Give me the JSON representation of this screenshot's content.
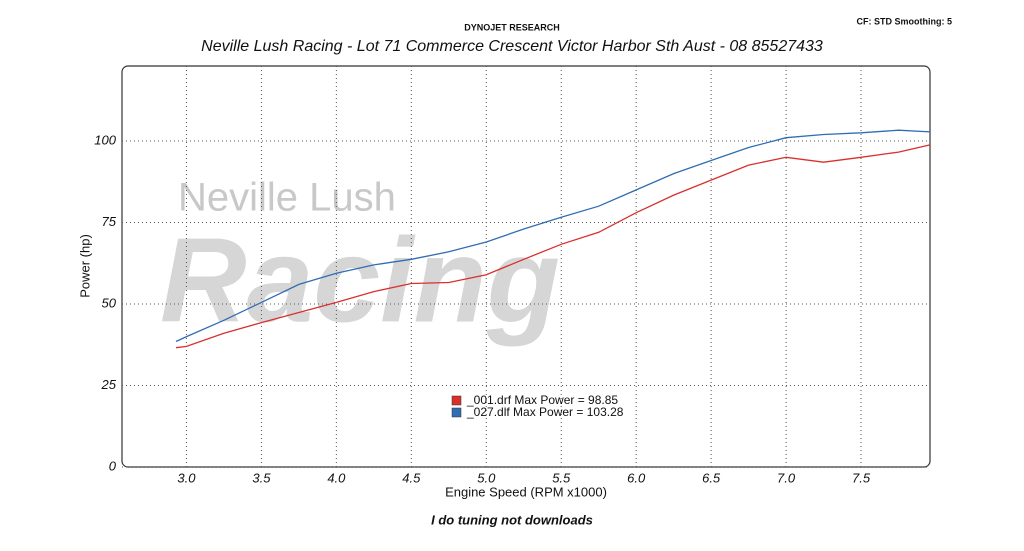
{
  "chart_data": {
    "type": "line",
    "header_left": "DYNOJET RESEARCH",
    "header_right": "CF: STD  Smoothing: 5",
    "title": "Neville Lush Racing  - Lot 71 Commerce Crescent  Victor Harbor Sth Aust  - 08 85527433",
    "watermark": [
      "Neville Lush",
      "Racing"
    ],
    "x_label": "Engine Speed (RPM x1000)",
    "y_label": "Power (hp)",
    "footer": "I do tuning not downloads",
    "x": [
      2.93,
      3.0,
      3.25,
      3.5,
      3.75,
      4.0,
      4.25,
      4.5,
      4.75,
      5.0,
      5.25,
      5.5,
      5.75,
      6.0,
      6.25,
      6.5,
      6.75,
      7.0,
      7.25,
      7.5,
      7.75,
      7.96
    ],
    "series": [
      {
        "name": "_001.drf Max Power = 98.85",
        "color": "#d9302c",
        "values": [
          36.6,
          37,
          41,
          44.3,
          47.4,
          50.5,
          53.8,
          56.3,
          56.6,
          59,
          63.7,
          68.3,
          72,
          78,
          83.4,
          88,
          92.6,
          95,
          93.5,
          95,
          96.6,
          98.8
        ]
      },
      {
        "name": "_027.dlf Max Power = 103.28",
        "color": "#2f6db5",
        "values": [
          38.5,
          40,
          45,
          50.5,
          56,
          59.4,
          62,
          63.7,
          66,
          69,
          73,
          76.6,
          80,
          85,
          90,
          94,
          98,
          101,
          102,
          102.5,
          103.3,
          102.8
        ]
      }
    ],
    "xlim": [
      2.57,
      7.96
    ],
    "ylim": [
      0,
      123
    ],
    "xticks": [
      {
        "value": 3,
        "label": "3.0"
      },
      {
        "value": 3.5,
        "label": "3.5"
      },
      {
        "value": 4,
        "label": "4.0"
      },
      {
        "value": 4.5,
        "label": "4.5"
      },
      {
        "value": 5,
        "label": "5.0"
      },
      {
        "value": 5.5,
        "label": "5.5"
      },
      {
        "value": 6,
        "label": "6.0"
      },
      {
        "value": 6.5,
        "label": "6.5"
      },
      {
        "value": 7,
        "label": "7.0"
      },
      {
        "value": 7.5,
        "label": "7.5"
      }
    ],
    "yticks": [
      0,
      25,
      50,
      75,
      100
    ],
    "grid": true
  }
}
